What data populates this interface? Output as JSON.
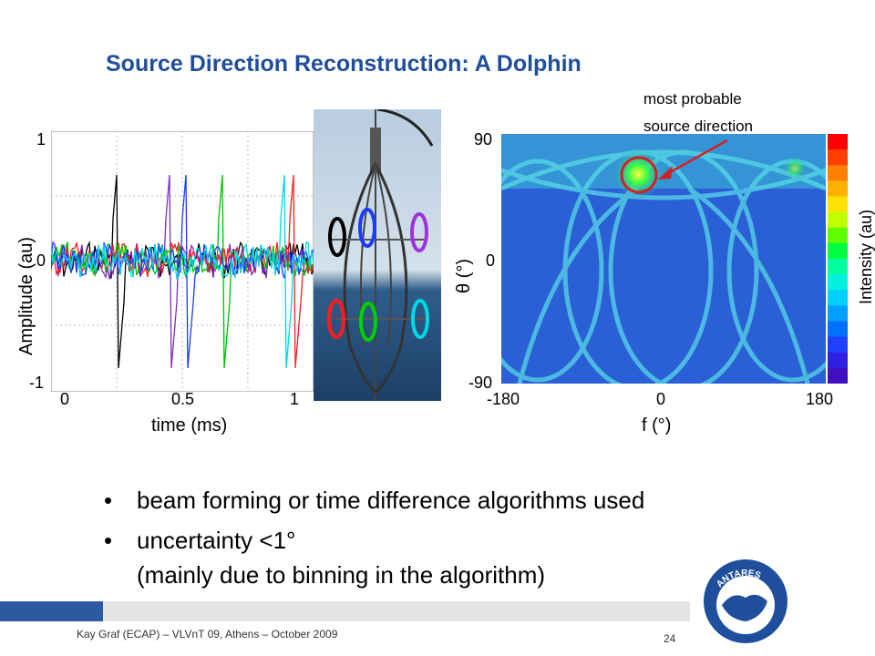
{
  "slide": {
    "title": "Source Direction Reconstruction: A Dolphin",
    "annotation_line1": "most probable",
    "annotation_line2": "source direction"
  },
  "waveform_plot": {
    "ylabel": "Amplitude (au)",
    "xlabel": "time (ms)",
    "y_ticks": [
      "1",
      "0",
      "-1"
    ],
    "x_ticks": [
      "0",
      "0.5",
      "1"
    ],
    "trace_colors": [
      "#000000",
      "#7b2fbf",
      "#ff1c1c",
      "#00c000",
      "#1c3cff",
      "#00d8e6"
    ]
  },
  "skymap": {
    "ylabel": "θ (°)",
    "xlabel": "f (°)",
    "colorbar_label": "Intensity (au)",
    "y_ticks": [
      "90",
      "0",
      "-90"
    ],
    "x_ticks": [
      "-180",
      "0",
      "180"
    ]
  },
  "photo": {
    "hydrophone_ring_colors": [
      "#000000",
      "#1c3cff",
      "#a030e0",
      "#ff1c1c",
      "#00d000",
      "#00d8e6"
    ]
  },
  "bullets": [
    {
      "text": "beam forming or time difference algorithms used",
      "subtext": ""
    },
    {
      "text": "uncertainty  <1°",
      "subtext": "(mainly due to binning in the algorithm)"
    }
  ],
  "footer": {
    "text": "Kay Graf (ECAP) – VLVnT 09, Athens – October 2009",
    "page_number": "24",
    "logo_text": "ANTARES"
  }
}
